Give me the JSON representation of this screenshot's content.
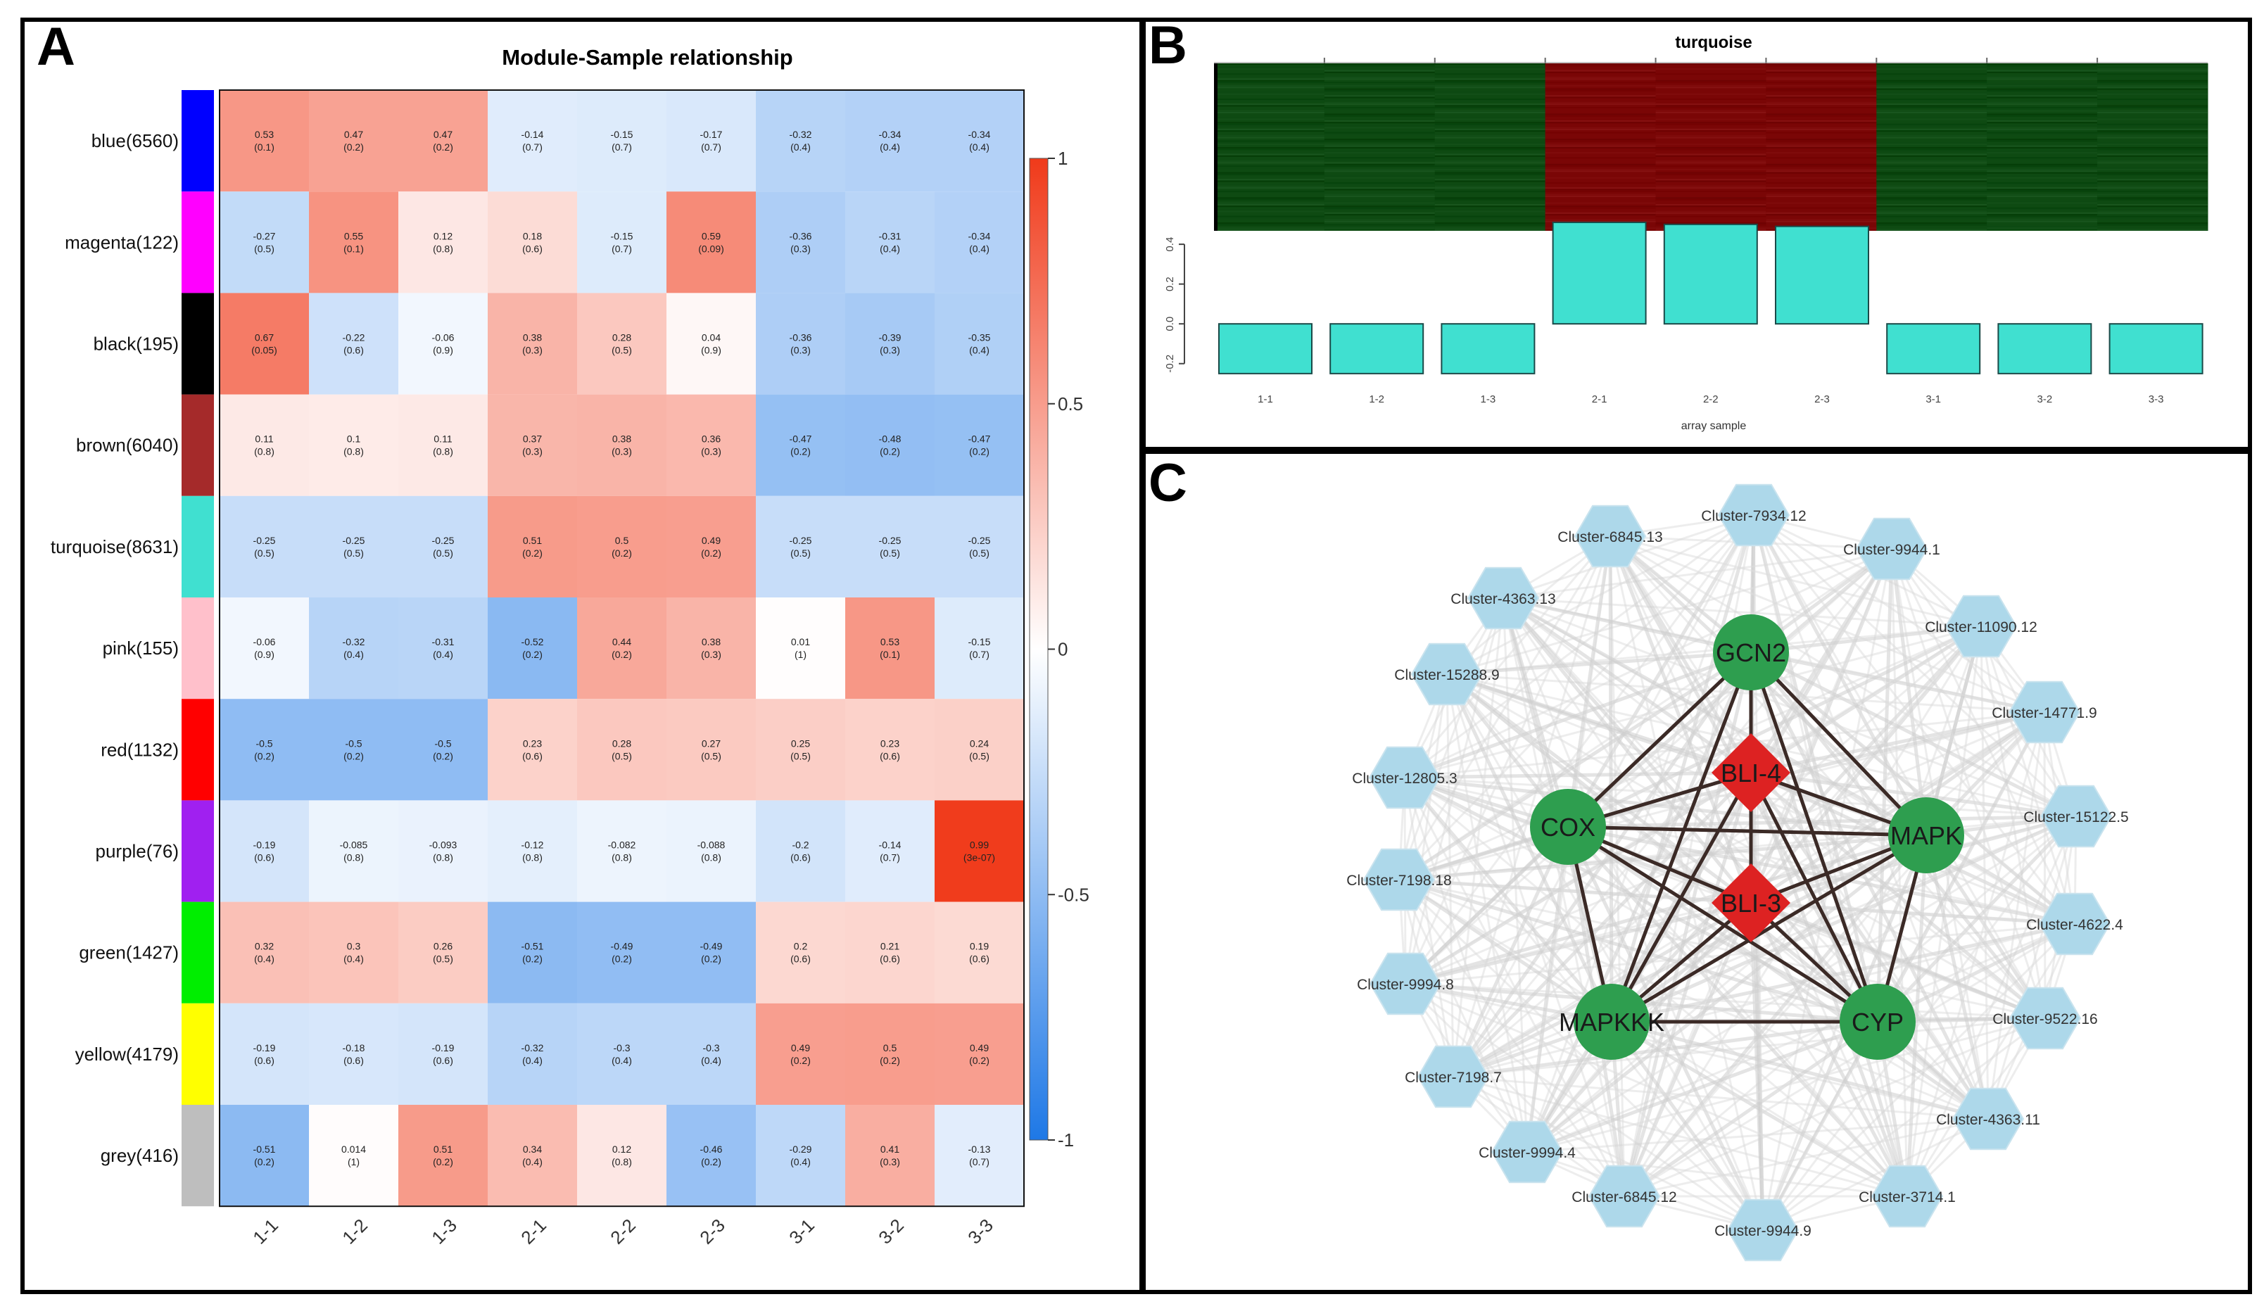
{
  "panels": {
    "a_label": "A",
    "b_label": "B",
    "c_label": "C"
  },
  "chart_data": [
    {
      "type": "heatmap",
      "title": "Module-Sample relationship",
      "columns": [
        "1-1",
        "1-2",
        "1-3",
        "2-1",
        "2-2",
        "2-3",
        "3-1",
        "3-2",
        "3-3"
      ],
      "rows": [
        {
          "label": "blue(6560)",
          "module_color": "#0000FF",
          "r": [
            0.53,
            0.47,
            0.47,
            -0.14,
            -0.15,
            -0.17,
            -0.32,
            -0.34,
            -0.34
          ],
          "r_text": [
            "0.53",
            "0.47",
            "0.47",
            "-0.14",
            "-0.15",
            "-0.17",
            "-0.32",
            "-0.34",
            "-0.34"
          ],
          "p_text": [
            "(0.1)",
            "(0.2)",
            "(0.2)",
            "(0.7)",
            "(0.7)",
            "(0.7)",
            "(0.4)",
            "(0.4)",
            "(0.4)"
          ]
        },
        {
          "label": "magenta(122)",
          "module_color": "#FF00FF",
          "r": [
            -0.27,
            0.55,
            0.12,
            0.18,
            -0.15,
            0.59,
            -0.36,
            -0.31,
            -0.34
          ],
          "r_text": [
            "-0.27",
            "0.55",
            "0.12",
            "0.18",
            "-0.15",
            "0.59",
            "-0.36",
            "-0.31",
            "-0.34"
          ],
          "p_text": [
            "(0.5)",
            "(0.1)",
            "(0.8)",
            "(0.6)",
            "(0.7)",
            "(0.09)",
            "(0.3)",
            "(0.4)",
            "(0.4)"
          ]
        },
        {
          "label": "black(195)",
          "module_color": "#000000",
          "r": [
            0.67,
            -0.22,
            -0.06,
            0.38,
            0.28,
            0.04,
            -0.36,
            -0.39,
            -0.35
          ],
          "r_text": [
            "0.67",
            "-0.22",
            "-0.06",
            "0.38",
            "0.28",
            "0.04",
            "-0.36",
            "-0.39",
            "-0.35"
          ],
          "p_text": [
            "(0.05)",
            "(0.6)",
            "(0.9)",
            "(0.3)",
            "(0.5)",
            "(0.9)",
            "(0.3)",
            "(0.3)",
            "(0.4)"
          ]
        },
        {
          "label": "brown(6040)",
          "module_color": "#A52A2A",
          "r": [
            0.11,
            0.1,
            0.11,
            0.37,
            0.38,
            0.36,
            -0.47,
            -0.48,
            -0.47
          ],
          "r_text": [
            "0.11",
            "0.1",
            "0.11",
            "0.37",
            "0.38",
            "0.36",
            "-0.47",
            "-0.48",
            "-0.47"
          ],
          "p_text": [
            "(0.8)",
            "(0.8)",
            "(0.8)",
            "(0.3)",
            "(0.3)",
            "(0.3)",
            "(0.2)",
            "(0.2)",
            "(0.2)"
          ]
        },
        {
          "label": "turquoise(8631)",
          "module_color": "#40E0D0",
          "r": [
            -0.25,
            -0.25,
            -0.25,
            0.51,
            0.5,
            0.49,
            -0.25,
            -0.25,
            -0.25
          ],
          "r_text": [
            "-0.25",
            "-0.25",
            "-0.25",
            "0.51",
            "0.5",
            "0.49",
            "-0.25",
            "-0.25",
            "-0.25"
          ],
          "p_text": [
            "(0.5)",
            "(0.5)",
            "(0.5)",
            "(0.2)",
            "(0.2)",
            "(0.2)",
            "(0.5)",
            "(0.5)",
            "(0.5)"
          ]
        },
        {
          "label": "pink(155)",
          "module_color": "#FFC0CB",
          "r": [
            -0.06,
            -0.32,
            -0.31,
            -0.52,
            0.44,
            0.38,
            0.01,
            0.53,
            -0.15
          ],
          "r_text": [
            "-0.06",
            "-0.32",
            "-0.31",
            "-0.52",
            "0.44",
            "0.38",
            "0.01",
            "0.53",
            "-0.15"
          ],
          "p_text": [
            "(0.9)",
            "(0.4)",
            "(0.4)",
            "(0.2)",
            "(0.2)",
            "(0.3)",
            "(1)",
            "(0.1)",
            "(0.7)"
          ]
        },
        {
          "label": "red(1132)",
          "module_color": "#FF0000",
          "r": [
            -0.5,
            -0.5,
            -0.5,
            0.23,
            0.28,
            0.27,
            0.25,
            0.23,
            0.24
          ],
          "r_text": [
            "-0.5",
            "-0.5",
            "-0.5",
            "0.23",
            "0.28",
            "0.27",
            "0.25",
            "0.23",
            "0.24"
          ],
          "p_text": [
            "(0.2)",
            "(0.2)",
            "(0.2)",
            "(0.6)",
            "(0.5)",
            "(0.5)",
            "(0.5)",
            "(0.6)",
            "(0.5)"
          ]
        },
        {
          "label": "purple(76)",
          "module_color": "#A020F0",
          "r": [
            -0.19,
            -0.085,
            -0.093,
            -0.12,
            -0.082,
            -0.088,
            -0.2,
            -0.14,
            0.99
          ],
          "r_text": [
            "-0.19",
            "-0.085",
            "-0.093",
            "-0.12",
            "-0.082",
            "-0.088",
            "-0.2",
            "-0.14",
            "0.99"
          ],
          "p_text": [
            "(0.6)",
            "(0.8)",
            "(0.8)",
            "(0.8)",
            "(0.8)",
            "(0.8)",
            "(0.6)",
            "(0.7)",
            "(3e-07)"
          ]
        },
        {
          "label": "green(1427)",
          "module_color": "#00EE00",
          "r": [
            0.32,
            0.3,
            0.26,
            -0.51,
            -0.49,
            -0.49,
            0.2,
            0.21,
            0.19
          ],
          "r_text": [
            "0.32",
            "0.3",
            "0.26",
            "-0.51",
            "-0.49",
            "-0.49",
            "0.2",
            "0.21",
            "0.19"
          ],
          "p_text": [
            "(0.4)",
            "(0.4)",
            "(0.5)",
            "(0.2)",
            "(0.2)",
            "(0.2)",
            "(0.6)",
            "(0.6)",
            "(0.6)"
          ]
        },
        {
          "label": "yellow(4179)",
          "module_color": "#FFFF00",
          "r": [
            -0.19,
            -0.18,
            -0.19,
            -0.32,
            -0.3,
            -0.3,
            0.49,
            0.5,
            0.49
          ],
          "r_text": [
            "-0.19",
            "-0.18",
            "-0.19",
            "-0.32",
            "-0.3",
            "-0.3",
            "0.49",
            "0.5",
            "0.49"
          ],
          "p_text": [
            "(0.6)",
            "(0.6)",
            "(0.6)",
            "(0.4)",
            "(0.4)",
            "(0.4)",
            "(0.2)",
            "(0.2)",
            "(0.2)"
          ]
        },
        {
          "label": "grey(416)",
          "module_color": "#BEBEBE",
          "r": [
            -0.51,
            0.014,
            0.51,
            0.34,
            0.12,
            -0.46,
            -0.29,
            0.41,
            -0.13
          ],
          "r_text": [
            "-0.51",
            "0.014",
            "0.51",
            "0.34",
            "0.12",
            "-0.46",
            "-0.29",
            "0.41",
            "-0.13"
          ],
          "p_text": [
            "(0.2)",
            "(1)",
            "(0.2)",
            "(0.4)",
            "(0.8)",
            "(0.2)",
            "(0.4)",
            "(0.3)",
            "(0.7)"
          ]
        }
      ],
      "colorbar": {
        "range": [
          -1,
          1
        ],
        "ticks": [
          "1",
          "0.5",
          "0",
          "-0.5",
          "-1"
        ],
        "tick_values": [
          1,
          0.5,
          0,
          -0.5,
          -1
        ],
        "colors": {
          "neg": "#1E78E6",
          "mid": "#FFFFFF",
          "pos": "#F03A1A"
        }
      }
    },
    {
      "type": "bar",
      "title": "turquoise",
      "xlabel": "array sample",
      "categories": [
        "1-1",
        "1-2",
        "1-3",
        "2-1",
        "2-2",
        "2-3",
        "3-1",
        "3-2",
        "3-3"
      ],
      "values": [
        -0.25,
        -0.25,
        -0.25,
        0.51,
        0.5,
        0.49,
        -0.25,
        -0.25,
        -0.25
      ],
      "ylim": [
        -0.3,
        0.45
      ],
      "yticks": [
        -0.2,
        0,
        0.2,
        0.4
      ],
      "ytick_labels": [
        "-0.2",
        "0.0",
        "0.2",
        "0.4"
      ],
      "bar_color": "#40E0D0",
      "expression_heatmap": {
        "groups": [
          "low",
          "low",
          "low",
          "high",
          "high",
          "high",
          "low",
          "low",
          "low"
        ],
        "colors": {
          "low": "#0E4A12",
          "high": "#7A0606"
        }
      }
    },
    {
      "type": "network",
      "hub_nodes": [
        {
          "label": "GCN2",
          "shape": "circle",
          "color": "#2E9E4F"
        },
        {
          "label": "COX",
          "shape": "circle",
          "color": "#2E9E4F"
        },
        {
          "label": "MAPK",
          "shape": "circle",
          "color": "#2E9E4F"
        },
        {
          "label": "MAPKKK",
          "shape": "circle",
          "color": "#2E9E4F"
        },
        {
          "label": "CYP",
          "shape": "circle",
          "color": "#2E9E4F"
        },
        {
          "label": "BLI-4",
          "shape": "diamond",
          "color": "#DD2222"
        },
        {
          "label": "BLI-3",
          "shape": "diamond",
          "color": "#DD2222"
        }
      ],
      "peripheral_nodes": [
        "Cluster-7934.12",
        "Cluster-9944.1",
        "Cluster-11090.12",
        "Cluster-14771.9",
        "Cluster-15122.5",
        "Cluster-4622.4",
        "Cluster-9522.16",
        "Cluster-4363.11",
        "Cluster-3714.1",
        "Cluster-9944.9",
        "Cluster-6845.12",
        "Cluster-9994.4",
        "Cluster-7198.7",
        "Cluster-9994.8",
        "Cluster-7198.18",
        "Cluster-12805.3",
        "Cluster-15288.9",
        "Cluster-4363.13",
        "Cluster-6845.13"
      ],
      "peripheral_color": "#ADD8EA",
      "hub_edges": [
        [
          "GCN2",
          "COX"
        ],
        [
          "GCN2",
          "MAPK"
        ],
        [
          "GCN2",
          "MAPKKK"
        ],
        [
          "GCN2",
          "CYP"
        ],
        [
          "GCN2",
          "BLI-4"
        ],
        [
          "GCN2",
          "BLI-3"
        ],
        [
          "COX",
          "MAPK"
        ],
        [
          "COX",
          "MAPKKK"
        ],
        [
          "COX",
          "CYP"
        ],
        [
          "COX",
          "BLI-4"
        ],
        [
          "COX",
          "BLI-3"
        ],
        [
          "MAPK",
          "MAPKKK"
        ],
        [
          "MAPK",
          "CYP"
        ],
        [
          "MAPK",
          "BLI-4"
        ],
        [
          "MAPK",
          "BLI-3"
        ],
        [
          "MAPKKK",
          "CYP"
        ],
        [
          "MAPKKK",
          "BLI-4"
        ],
        [
          "MAPKKK",
          "BLI-3"
        ],
        [
          "CYP",
          "BLI-4"
        ],
        [
          "CYP",
          "BLI-3"
        ],
        [
          "BLI-4",
          "BLI-3"
        ]
      ]
    }
  ]
}
